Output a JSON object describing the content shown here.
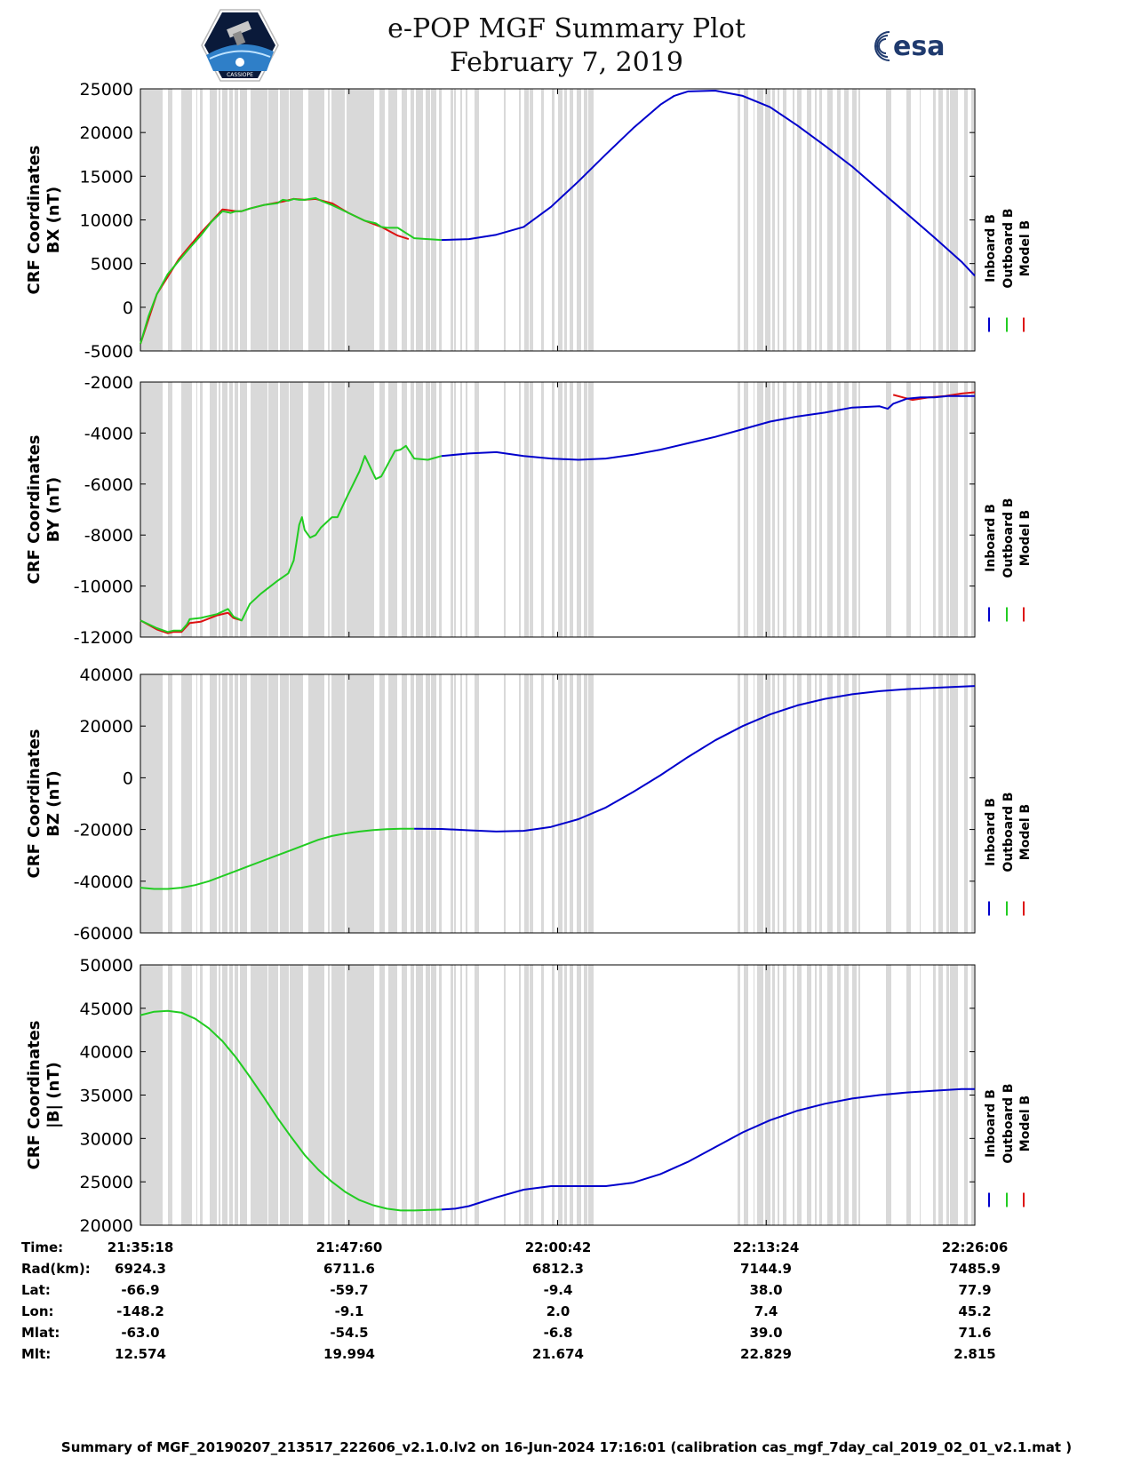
{
  "header": {
    "title_line1": "e-POP MGF Summary Plot",
    "title_line2": "February 7, 2019",
    "logo_left_text": "CASSIOPE",
    "logo_right_text": "esa"
  },
  "legend_labels": [
    "Inboard B",
    "Outboard B",
    "Model B"
  ],
  "colors": {
    "inboard": "#0000cc",
    "outboard": "#22cc22",
    "model": "#dd1111",
    "gap": "#d9d9d9"
  },
  "gap_intervals": [
    [
      0,
      25
    ],
    [
      31,
      36
    ],
    [
      46,
      58
    ],
    [
      63,
      64
    ],
    [
      67,
      70
    ],
    [
      78,
      86
    ],
    [
      88,
      90
    ],
    [
      92,
      98
    ],
    [
      100,
      104
    ],
    [
      106,
      110
    ],
    [
      112,
      120
    ],
    [
      124,
      143
    ],
    [
      144,
      155
    ],
    [
      157,
      167
    ],
    [
      168,
      183
    ],
    [
      189,
      207
    ],
    [
      211,
      213
    ],
    [
      215,
      230
    ],
    [
      232,
      263
    ],
    [
      269,
      275
    ],
    [
      279,
      289
    ],
    [
      294,
      300
    ],
    [
      304,
      308
    ],
    [
      310,
      318
    ],
    [
      321,
      326
    ],
    [
      327,
      333
    ],
    [
      336,
      339
    ],
    [
      349,
      352
    ],
    [
      353,
      355
    ],
    [
      360,
      362
    ],
    [
      366,
      368
    ],
    [
      376,
      381
    ],
    [
      409,
      411
    ],
    [
      426,
      428
    ],
    [
      432,
      437
    ],
    [
      438,
      442
    ],
    [
      451,
      454
    ],
    [
      463,
      466
    ],
    [
      470,
      475
    ],
    [
      477,
      480
    ],
    [
      483,
      487
    ],
    [
      491,
      496
    ],
    [
      499,
      503
    ],
    [
      504,
      510
    ],
    [
      672,
      675
    ],
    [
      679,
      684
    ],
    [
      690,
      691
    ],
    [
      694,
      701
    ],
    [
      703,
      709
    ],
    [
      711,
      714
    ],
    [
      717,
      719
    ],
    [
      723,
      727
    ],
    [
      734,
      736
    ],
    [
      739,
      744
    ],
    [
      750,
      755
    ],
    [
      759,
      761
    ],
    [
      764,
      767
    ],
    [
      773,
      779
    ],
    [
      784,
      788
    ],
    [
      792,
      797
    ],
    [
      801,
      806
    ],
    [
      808,
      810
    ],
    [
      839,
      845
    ],
    [
      862,
      867
    ],
    [
      877,
      878
    ],
    [
      892,
      895
    ],
    [
      898,
      903
    ],
    [
      907,
      910
    ],
    [
      911,
      920
    ],
    [
      927,
      931
    ],
    [
      935,
      938
    ]
  ],
  "chart_data": [
    {
      "type": "line",
      "title": "",
      "ylabel": "CRF Coordinates BX (nT)",
      "xlim": [
        0,
        3048
      ],
      "ylim": [
        -5000,
        25000
      ],
      "yticks": [
        "25000",
        "20000",
        "15000",
        "10000",
        "5000",
        "0",
        "-5000"
      ],
      "xticks_s": [
        0,
        762,
        1524,
        2286,
        3048
      ],
      "series": [
        {
          "name": "Model B",
          "color": "#dd1111",
          "x": [
            0,
            60,
            140,
            220,
            300,
            350,
            370,
            400,
            450,
            520,
            560,
            600,
            640,
            700,
            760,
            820,
            880,
            940,
            980
          ],
          "y": [
            -4200,
            1500,
            5500,
            8500,
            11200,
            11000,
            11000,
            11300,
            11700,
            12100,
            12400,
            12300,
            12400,
            11900,
            10800,
            9900,
            9200,
            8200,
            7800
          ]
        },
        {
          "name": "Outboard B",
          "color": "#22cc22",
          "x": [
            0,
            30,
            60,
            100,
            140,
            180,
            220,
            260,
            300,
            330,
            350,
            370,
            400,
            450,
            500,
            520,
            540,
            560,
            580,
            600,
            620,
            640,
            660,
            700,
            760,
            820,
            860,
            880,
            900,
            940,
            980,
            1000,
            1100
          ],
          "y": [
            -4200,
            -1000,
            1500,
            3800,
            5300,
            6800,
            8200,
            9800,
            11000,
            10800,
            11000,
            11000,
            11300,
            11700,
            11900,
            12300,
            12200,
            12400,
            12300,
            12300,
            12400,
            12500,
            12200,
            11700,
            10800,
            9900,
            9600,
            9200,
            9100,
            9100,
            8300,
            7900,
            7700
          ]
        },
        {
          "name": "Inboard B",
          "color": "#0000cc",
          "x": [
            1100,
            1200,
            1300,
            1400,
            1500,
            1600,
            1700,
            1800,
            1900,
            1950,
            2000,
            2100,
            2200,
            2300,
            2400,
            2500,
            2600,
            2700,
            2800,
            2900,
            3000,
            3048
          ],
          "y": [
            7700,
            7800,
            8300,
            9200,
            11500,
            14400,
            17500,
            20500,
            23200,
            24200,
            24700,
            24800,
            24200,
            22900,
            20800,
            18500,
            16100,
            13400,
            10700,
            8000,
            5200,
            3600
          ]
        }
      ]
    },
    {
      "type": "line",
      "title": "",
      "ylabel": "CRF Coordinates BY (nT)",
      "xlim": [
        0,
        3048
      ],
      "ylim": [
        -12000,
        -2000
      ],
      "yticks": [
        "-2000",
        "-4000",
        "-6000",
        "-8000",
        "-10000",
        "-12000"
      ],
      "xticks_s": [
        0,
        762,
        1524,
        2286,
        3048
      ],
      "series": [
        {
          "name": "Model B",
          "color": "#dd1111",
          "x": [
            0,
            60,
            100,
            120,
            150,
            180,
            220,
            280,
            320,
            340,
            370
          ],
          "y": [
            -11350,
            -11700,
            -11850,
            -11800,
            -11800,
            -11450,
            -11400,
            -11150,
            -11050,
            -11250,
            -11350
          ]
        },
        {
          "name": "Model B",
          "color": "#dd1111",
          "x": [
            2750,
            2820,
            2880,
            2940,
            3000,
            3048
          ],
          "y": [
            -2500,
            -2700,
            -2600,
            -2550,
            -2450,
            -2400
          ]
        },
        {
          "name": "Outboard B",
          "color": "#22cc22",
          "x": [
            0,
            60,
            100,
            120,
            150,
            170,
            180,
            220,
            280,
            300,
            320,
            340,
            370,
            400,
            440,
            500,
            540,
            560,
            570,
            580,
            590,
            600,
            620,
            640,
            660,
            700,
            720,
            750,
            800,
            820,
            860,
            880,
            900,
            930,
            950,
            970,
            1000,
            1050,
            1100
          ],
          "y": [
            -11350,
            -11650,
            -11800,
            -11750,
            -11750,
            -11500,
            -11300,
            -11250,
            -11100,
            -11000,
            -10900,
            -11200,
            -11350,
            -10700,
            -10300,
            -9800,
            -9500,
            -9000,
            -8300,
            -7600,
            -7300,
            -7800,
            -8100,
            -8000,
            -7700,
            -7300,
            -7300,
            -6600,
            -5500,
            -4900,
            -5800,
            -5700,
            -5300,
            -4700,
            -4650,
            -4500,
            -5000,
            -5050,
            -4900
          ]
        },
        {
          "name": "Inboard B",
          "color": "#0000cc",
          "x": [
            1100,
            1200,
            1300,
            1400,
            1500,
            1600,
            1700,
            1800,
            1900,
            2000,
            2100,
            2200,
            2300,
            2400,
            2500,
            2600,
            2700,
            2730,
            2750,
            2800,
            2850,
            2900,
            2950,
            3000,
            3048
          ],
          "y": [
            -4900,
            -4800,
            -4750,
            -4900,
            -5000,
            -5050,
            -5000,
            -4850,
            -4650,
            -4400,
            -4150,
            -3850,
            -3550,
            -3350,
            -3200,
            -3000,
            -2950,
            -3050,
            -2850,
            -2650,
            -2600,
            -2600,
            -2550,
            -2550,
            -2550
          ]
        }
      ]
    },
    {
      "type": "line",
      "title": "",
      "ylabel": "CRF Coordinates BZ (nT)",
      "xlim": [
        0,
        3048
      ],
      "ylim": [
        -60000,
        40000
      ],
      "yticks": [
        "40000",
        "20000",
        "0",
        "-20000",
        "-40000",
        "-60000"
      ],
      "xticks_s": [
        0,
        762,
        1524,
        2286,
        3048
      ],
      "series": [
        {
          "name": "Outboard B",
          "color": "#22cc22",
          "x": [
            0,
            50,
            100,
            150,
            200,
            250,
            300,
            350,
            400,
            450,
            500,
            550,
            600,
            650,
            700,
            750,
            800,
            850,
            900,
            950,
            1000
          ],
          "y": [
            -42500,
            -43000,
            -43000,
            -42500,
            -41500,
            -40000,
            -38000,
            -36000,
            -34000,
            -32000,
            -30000,
            -28000,
            -26000,
            -24000,
            -22500,
            -21500,
            -20800,
            -20200,
            -19900,
            -19700,
            -19700
          ]
        },
        {
          "name": "Inboard B",
          "color": "#0000cc",
          "x": [
            1000,
            1100,
            1200,
            1300,
            1400,
            1500,
            1600,
            1700,
            1800,
            1900,
            2000,
            2100,
            2200,
            2300,
            2400,
            2500,
            2600,
            2700,
            2800,
            2900,
            3000,
            3048
          ],
          "y": [
            -19700,
            -19800,
            -20300,
            -20800,
            -20500,
            -19000,
            -16000,
            -11500,
            -5500,
            1000,
            8000,
            14500,
            20000,
            24500,
            28000,
            30500,
            32300,
            33500,
            34300,
            34800,
            35300,
            35500
          ]
        }
      ]
    },
    {
      "type": "line",
      "title": "",
      "ylabel": "CRF Coordinates |B| (nT)",
      "xlim": [
        0,
        3048
      ],
      "ylim": [
        20000,
        50000
      ],
      "yticks": [
        "50000",
        "45000",
        "40000",
        "35000",
        "30000",
        "25000",
        "20000"
      ],
      "xticks_s": [
        0,
        762,
        1524,
        2286,
        3048
      ],
      "series": [
        {
          "name": "Outboard B",
          "color": "#22cc22",
          "x": [
            0,
            50,
            100,
            150,
            200,
            250,
            300,
            350,
            400,
            450,
            500,
            550,
            600,
            650,
            700,
            750,
            800,
            850,
            900,
            950,
            1000,
            1050,
            1100
          ],
          "y": [
            44200,
            44600,
            44700,
            44500,
            43800,
            42700,
            41200,
            39300,
            37100,
            34800,
            32400,
            30200,
            28100,
            26400,
            25000,
            23800,
            22900,
            22300,
            21900,
            21700,
            21700,
            21750,
            21800
          ]
        },
        {
          "name": "Inboard B",
          "color": "#0000cc",
          "x": [
            1100,
            1150,
            1200,
            1300,
            1400,
            1500,
            1600,
            1700,
            1800,
            1900,
            2000,
            2100,
            2200,
            2300,
            2400,
            2500,
            2600,
            2700,
            2800,
            2900,
            3000,
            3048
          ],
          "y": [
            21800,
            21900,
            22200,
            23200,
            24100,
            24500,
            24500,
            24500,
            24900,
            25900,
            27300,
            29000,
            30700,
            32100,
            33200,
            34000,
            34600,
            35000,
            35300,
            35500,
            35700,
            35700
          ]
        }
      ]
    }
  ],
  "info_table": {
    "labels": [
      "Time:",
      "Rad(km):",
      "Lat:",
      "Lon:",
      "Mlat:",
      "Mlt:"
    ],
    "columns": [
      [
        "21:35:18",
        "6924.3",
        "-66.9",
        "-148.2",
        "-63.0",
        "12.574"
      ],
      [
        "21:47:60",
        "6711.6",
        "-59.7",
        "-9.1",
        "-54.5",
        "19.994"
      ],
      [
        "22:00:42",
        "6812.3",
        "-9.4",
        "2.0",
        "-6.8",
        "21.674"
      ],
      [
        "22:13:24",
        "7144.9",
        "38.0",
        "7.4",
        "39.0",
        "22.829"
      ],
      [
        "22:26:06",
        "7485.9",
        "77.9",
        "45.2",
        "71.6",
        "2.815"
      ]
    ]
  },
  "footer": "Summary of MGF_20190207_213517_222606_v2.1.0.lv2 on 16-Jun-2024 17:16:01 (calibration cas_mgf_7day_cal_2019_02_01_v2.1.mat )"
}
